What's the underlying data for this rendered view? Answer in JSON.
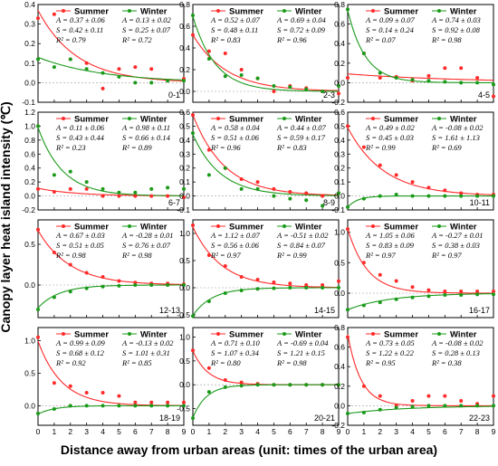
{
  "figure": {
    "ylabel": "Canopy layer heat island intensity (℃)",
    "xlabel": "Distance away from urban areas (unit: times of the urban area)",
    "legend": [
      "Summer",
      "Winter"
    ],
    "colors": {
      "summer": "#ff2a2a",
      "winter": "#1a9a1a"
    }
  },
  "chart_data": [
    {
      "type": "scatter",
      "panel": "0-1",
      "xlim": [
        0,
        9
      ],
      "ylim": [
        -0.1,
        0.4
      ],
      "yticks": [
        "0.4",
        "0.3",
        "0.2",
        "0.1",
        "0.0",
        "-0.1"
      ],
      "xticks": [
        "0",
        "1",
        "2",
        "3",
        "4",
        "5",
        "6",
        "7",
        "8",
        "9"
      ],
      "stats": {
        "summer": {
          "A": "0.37 ± 0.06",
          "S": "0.42 ± 0.11",
          "R2": "0.79"
        },
        "winter": {
          "A": "0.13 ± 0.02",
          "S": "0.25 ± 0.07",
          "R2": "0.72"
        }
      },
      "series": [
        {
          "name": "Summer",
          "x": [
            0,
            1,
            2,
            3,
            4,
            5,
            6,
            7,
            8,
            9
          ],
          "y": [
            0.33,
            0.35,
            0.12,
            0.1,
            -0.03,
            0.07,
            0.08,
            0.07,
            0.01,
            0.02
          ]
        },
        {
          "name": "Winter",
          "x": [
            0,
            1,
            2,
            3,
            4,
            5,
            6,
            7,
            8,
            9
          ],
          "y": [
            0.12,
            0.08,
            0.12,
            0.07,
            0.05,
            0.03,
            0.0,
            0.0,
            0.01,
            0.01
          ]
        }
      ]
    },
    {
      "type": "scatter",
      "panel": "2-3",
      "xlim": [
        0,
        9
      ],
      "ylim": [
        -0.1,
        0.8
      ],
      "yticks": [
        "0.8",
        "0.6",
        "0.4",
        "0.2",
        "0.0"
      ],
      "xticks": [
        "0",
        "1",
        "2",
        "3",
        "4",
        "5",
        "6",
        "7",
        "8",
        "9"
      ],
      "stats": {
        "summer": {
          "A": "0.52 ± 0.07",
          "S": "0.48 ± 0.11",
          "R2": "0.83"
        },
        "winter": {
          "A": "0.69 ± 0.04",
          "S": "0.72 ± 0.09",
          "R2": "0.96"
        }
      },
      "series": [
        {
          "name": "Summer",
          "x": [
            0,
            1,
            2,
            3,
            4,
            5,
            6,
            7,
            8,
            9
          ],
          "y": [
            0.52,
            0.37,
            0.35,
            0.2,
            0.12,
            0.0,
            0.05,
            0.03,
            0.0,
            -0.02
          ]
        },
        {
          "name": "Winter",
          "x": [
            0,
            1,
            2,
            3,
            4,
            5,
            6,
            7,
            8,
            9
          ],
          "y": [
            0.7,
            0.3,
            0.14,
            0.15,
            0.12,
            0.05,
            0.04,
            0.02,
            0.0,
            0.05
          ]
        }
      ]
    },
    {
      "type": "scatter",
      "panel": "4-5",
      "xlim": [
        0,
        9
      ],
      "ylim": [
        -0.2,
        0.8
      ],
      "yticks": [
        "0.8",
        "0.6",
        "0.4",
        "0.2",
        "0.0",
        "-0.2"
      ],
      "xticks": [
        "0",
        "1",
        "2",
        "3",
        "4",
        "5",
        "6",
        "7",
        "8",
        "9"
      ],
      "stats": {
        "summer": {
          "A": "0.09 ± 0.07",
          "S": "0.14 ± 0.24",
          "R2": "0.07"
        },
        "winter": {
          "A": "0.74 ± 0.03",
          "S": "0.92 ± 0.08",
          "R2": "0.98"
        }
      },
      "series": [
        {
          "name": "Summer",
          "x": [
            0,
            1,
            2,
            3,
            4,
            5,
            6,
            7,
            8,
            9
          ],
          "y": [
            0.05,
            0.3,
            0.05,
            0.06,
            0.02,
            0.07,
            0.15,
            0.15,
            0.05,
            -0.14
          ]
        },
        {
          "name": "Winter",
          "x": [
            0,
            1,
            2,
            3,
            4,
            5,
            6,
            7,
            8,
            9
          ],
          "y": [
            0.75,
            0.3,
            0.1,
            0.05,
            0.03,
            0.02,
            0.01,
            0.0,
            0.0,
            -0.02
          ]
        }
      ]
    },
    {
      "type": "scatter",
      "panel": "6-7",
      "xlim": [
        0,
        9
      ],
      "ylim": [
        -0.2,
        1.2
      ],
      "yticks": [
        "1.2",
        "1.0",
        "0.8",
        "0.6",
        "0.4",
        "0.2",
        "0.0",
        "-0.2"
      ],
      "xticks": [
        "0",
        "1",
        "2",
        "3",
        "4",
        "5",
        "6",
        "7",
        "8",
        "9"
      ],
      "stats": {
        "summer": {
          "A": "0.11 ± 0.06",
          "S": "0.43 ± 0.44",
          "R2": "0.23"
        },
        "winter": {
          "A": "0.98 ± 0.11",
          "S": "0.66 ± 0.14",
          "R2": "0.89"
        }
      },
      "series": [
        {
          "name": "Summer",
          "x": [
            0,
            1,
            2,
            3,
            4,
            5,
            6,
            7,
            8,
            9
          ],
          "y": [
            0.1,
            0.06,
            0.1,
            0.1,
            0.0,
            0.0,
            0.0,
            0.0,
            0.0,
            -0.02
          ]
        },
        {
          "name": "Winter",
          "x": [
            0,
            1,
            2,
            3,
            4,
            5,
            6,
            7,
            8,
            9
          ],
          "y": [
            1.0,
            0.3,
            0.35,
            0.2,
            0.1,
            0.05,
            0.05,
            0.1,
            0.12,
            0.1
          ]
        }
      ]
    },
    {
      "type": "scatter",
      "panel": "8-9",
      "xlim": [
        0,
        9
      ],
      "ylim": [
        -0.1,
        0.6
      ],
      "yticks": [
        "0.6",
        "0.5",
        "0.4",
        "0.3",
        "0.2",
        "0.1",
        "0.0",
        "-0.1"
      ],
      "xticks": [
        "0",
        "1",
        "2",
        "3",
        "4",
        "5",
        "6",
        "7",
        "8",
        "9"
      ],
      "stats": {
        "summer": {
          "A": "0.58 ± 0.04",
          "S": "0.51 ± 0.06",
          "R2": "0.96"
        },
        "winter": {
          "A": "0.44 ± 0.07",
          "S": "0.59 ± 0.17",
          "R2": "0.83"
        }
      },
      "series": [
        {
          "name": "Summer",
          "x": [
            0,
            1,
            2,
            3,
            4,
            5,
            6,
            7,
            8,
            9
          ],
          "y": [
            0.58,
            0.33,
            0.2,
            0.12,
            0.1,
            0.05,
            0.03,
            0.02,
            0.0,
            0.02
          ]
        },
        {
          "name": "Winter",
          "x": [
            0,
            1,
            2,
            3,
            4,
            5,
            6,
            7,
            8,
            9
          ],
          "y": [
            0.45,
            0.15,
            0.2,
            0.05,
            0.05,
            0.0,
            -0.02,
            -0.03,
            -0.07,
            0.02
          ]
        }
      ]
    },
    {
      "type": "scatter",
      "panel": "10-11",
      "xlim": [
        0,
        9
      ],
      "ylim": [
        -0.1,
        0.6
      ],
      "yticks": [
        "0.6",
        "0.5",
        "0.4",
        "0.3",
        "0.2",
        "0.1",
        "0.0",
        "-0.1"
      ],
      "xticks": [
        "0",
        "1",
        "2",
        "3",
        "4",
        "5",
        "6",
        "7",
        "8",
        "9"
      ],
      "stats": {
        "summer": {
          "A": "0.49 ± 0.02",
          "S": "0.45 ± 0.03",
          "R2": "0.99"
        },
        "winter": {
          "A": "-0.08 ± 0.02",
          "S": "1.61 ± 1.13",
          "R2": "0.69"
        }
      },
      "series": [
        {
          "name": "Summer",
          "x": [
            0,
            1,
            2,
            3,
            4,
            5,
            6,
            7,
            8,
            9
          ],
          "y": [
            0.5,
            0.35,
            0.22,
            0.15,
            0.1,
            0.06,
            0.04,
            0.02,
            0.01,
            0.01
          ]
        },
        {
          "name": "Winter",
          "x": [
            0,
            1,
            2,
            3,
            4,
            5,
            6,
            7,
            8,
            9
          ],
          "y": [
            -0.08,
            -0.02,
            0.0,
            0.01,
            0.0,
            0.0,
            0.0,
            0.0,
            0.0,
            0.0
          ]
        }
      ]
    },
    {
      "type": "scatter",
      "panel": "12-13",
      "xlim": [
        0,
        9
      ],
      "ylim": [
        -0.4,
        0.8
      ],
      "yticks": [
        "0.5",
        "0.0"
      ],
      "xticks": [
        "0",
        "1",
        "2",
        "3",
        "4",
        "5",
        "6",
        "7",
        "8",
        "9"
      ],
      "stats": {
        "summer": {
          "A": "0.67 ± 0.03",
          "S": "0.51 ± 0.05",
          "R2": "0.98"
        },
        "winter": {
          "A": "-0.28 ± 0.01",
          "S": "0.76 ± 0.07",
          "R2": "0.98"
        }
      },
      "series": [
        {
          "name": "Summer",
          "x": [
            0,
            1,
            2,
            3,
            4,
            5,
            6,
            7,
            8,
            9
          ],
          "y": [
            0.68,
            0.4,
            0.25,
            0.15,
            0.1,
            0.05,
            0.03,
            0.02,
            0.02,
            0.01
          ]
        },
        {
          "name": "Winter",
          "x": [
            0,
            1,
            2,
            3,
            4,
            5,
            6,
            7,
            8,
            9
          ],
          "y": [
            -0.3,
            -0.15,
            -0.08,
            -0.04,
            -0.02,
            -0.01,
            0.0,
            0.0,
            0.0,
            0.0
          ]
        }
      ]
    },
    {
      "type": "scatter",
      "panel": "14-15",
      "xlim": [
        0,
        9
      ],
      "ylim": [
        -0.55,
        1.25
      ],
      "yticks": [
        "1.0",
        "0.5",
        "0.0",
        "-0.5"
      ],
      "xticks": [
        "0",
        "1",
        "2",
        "3",
        "4",
        "5",
        "6",
        "7",
        "8",
        "9"
      ],
      "stats": {
        "summer": {
          "A": "1.12 ± 0.07",
          "S": "0.56 ± 0.06",
          "R2": "0.97"
        },
        "winter": {
          "A": "-0.51 ± 0.02",
          "S": "0.84 ± 0.07",
          "R2": "0.99"
        }
      },
      "series": [
        {
          "name": "Summer",
          "x": [
            0,
            1,
            2,
            3,
            4,
            5,
            6,
            7,
            8,
            9
          ],
          "y": [
            1.15,
            0.6,
            0.4,
            0.2,
            0.15,
            0.1,
            0.08,
            0.05,
            0.05,
            0.12
          ]
        },
        {
          "name": "Winter",
          "x": [
            0,
            1,
            2,
            3,
            4,
            5,
            6,
            7,
            8,
            9
          ],
          "y": [
            -0.52,
            -0.25,
            -0.1,
            -0.05,
            -0.02,
            -0.01,
            0.0,
            0.0,
            0.0,
            0.0
          ]
        }
      ]
    },
    {
      "type": "scatter",
      "panel": "16-17",
      "xlim": [
        0,
        9
      ],
      "ylim": [
        -0.4,
        1.2
      ],
      "yticks": [
        "1.0",
        "0.5",
        "0.0"
      ],
      "xticks": [
        "0",
        "1",
        "2",
        "3",
        "4",
        "5",
        "6",
        "7",
        "8",
        "9"
      ],
      "stats": {
        "summer": {
          "A": "1.05 ± 0.06",
          "S": "0.83 ± 0.09",
          "R2": "0.97"
        },
        "winter": {
          "A": "-0.27 ± 0.01",
          "S": "0.38 ± 0.03",
          "R2": "0.97"
        }
      },
      "series": [
        {
          "name": "Summer",
          "x": [
            0,
            1,
            2,
            3,
            4,
            5,
            6,
            7,
            8,
            9
          ],
          "y": [
            1.05,
            0.5,
            0.3,
            0.2,
            0.1,
            0.05,
            0.03,
            0.03,
            0.03,
            0.03
          ]
        },
        {
          "name": "Winter",
          "x": [
            0,
            1,
            2,
            3,
            4,
            5,
            6,
            7,
            8,
            9
          ],
          "y": [
            -0.27,
            -0.2,
            -0.15,
            -0.1,
            -0.07,
            -0.05,
            -0.03,
            -0.03,
            -0.02,
            -0.02
          ]
        }
      ]
    },
    {
      "type": "scatter",
      "panel": "18-19",
      "xlim": [
        0,
        9
      ],
      "ylim": [
        -0.3,
        1.2
      ],
      "yticks": [
        "1.0",
        "0.5",
        "0.0"
      ],
      "xticks": [
        "0",
        "1",
        "2",
        "3",
        "4",
        "5",
        "6",
        "7",
        "8",
        "9"
      ],
      "stats": {
        "summer": {
          "A": "0.99 ± 0.09",
          "S": "0.68 ± 0.12",
          "R2": "0.92"
        },
        "winter": {
          "A": "-0.13 ± 0.02",
          "S": "1.01 ± 0.31",
          "R2": "0.85"
        }
      },
      "series": [
        {
          "name": "Summer",
          "x": [
            0,
            1,
            2,
            3,
            4,
            5,
            6,
            7,
            8,
            9
          ],
          "y": [
            1.05,
            0.35,
            0.3,
            0.2,
            0.2,
            0.15,
            0.05,
            0.05,
            0.05,
            0.05
          ]
        },
        {
          "name": "Winter",
          "x": [
            0,
            1,
            2,
            3,
            4,
            5,
            6,
            7,
            8,
            9
          ],
          "y": [
            -0.12,
            -0.05,
            0.0,
            0.0,
            0.0,
            0.0,
            0.0,
            0.0,
            0.0,
            0.0
          ]
        }
      ]
    },
    {
      "type": "scatter",
      "panel": "20-21",
      "xlim": [
        0,
        9
      ],
      "ylim": [
        -0.85,
        1.2
      ],
      "yticks": [
        "1.0",
        "0.5",
        "0.0",
        "-0.5"
      ],
      "xticks": [
        "0",
        "1",
        "2",
        "3",
        "4",
        "5",
        "6",
        "7",
        "8",
        "9"
      ],
      "stats": {
        "summer": {
          "A": "0.71 ± 0.10",
          "S": "1.07 ± 0.34",
          "R2": "0.80"
        },
        "winter": {
          "A": "-0.69 ± 0.04",
          "S": "1.21 ± 0.15",
          "R2": "0.98"
        }
      },
      "series": [
        {
          "name": "Summer",
          "x": [
            0,
            1,
            2,
            3,
            4,
            5,
            6,
            7,
            8,
            9
          ],
          "y": [
            0.72,
            0.35,
            0.1,
            0.05,
            0.02,
            0.0,
            0.0,
            0.0,
            0.0,
            0.0
          ]
        },
        {
          "name": "Winter",
          "x": [
            0,
            1,
            2,
            3,
            4,
            5,
            6,
            7,
            8,
            9
          ],
          "y": [
            -0.7,
            -0.15,
            -0.05,
            -0.02,
            0.0,
            0.0,
            0.0,
            0.0,
            0.0,
            0.0
          ]
        }
      ]
    },
    {
      "type": "scatter",
      "panel": "22-23",
      "xlim": [
        0,
        9
      ],
      "ylim": [
        -0.2,
        0.8
      ],
      "yticks": [
        "0.8",
        "0.6",
        "0.4",
        "0.2",
        "0.0",
        "-0.2"
      ],
      "xticks": [
        "0",
        "1",
        "2",
        "3",
        "4",
        "5",
        "6",
        "7",
        "8",
        "9"
      ],
      "stats": {
        "summer": {
          "A": "0.73 ± 0.05",
          "S": "1.22 ± 0.22",
          "R2": "0.95"
        },
        "winter": {
          "A": "-0.08 ± 0.02",
          "S": "0.28 ± 0.13",
          "R2": "0.38"
        }
      },
      "series": [
        {
          "name": "Summer",
          "x": [
            0,
            1,
            2,
            3,
            4,
            5,
            6,
            7,
            8,
            9
          ],
          "y": [
            0.7,
            0.2,
            0.1,
            0.0,
            0.05,
            0.1,
            0.1,
            0.05,
            0.02,
            0.1
          ]
        },
        {
          "name": "Winter",
          "x": [
            0,
            1,
            2,
            3,
            4,
            5,
            6,
            7,
            8,
            9
          ],
          "y": [
            -0.08,
            -0.07,
            -0.04,
            -0.02,
            -0.01,
            0.0,
            0.0,
            0.0,
            0.0,
            0.0
          ]
        }
      ]
    }
  ]
}
